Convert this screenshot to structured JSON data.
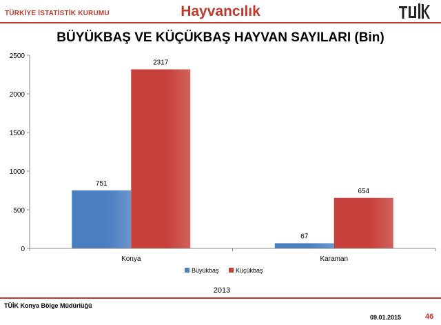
{
  "header": {
    "org_name": "TÜRKİYE İSTATİSTİK KURUMU",
    "section_title": "Hayvancılık",
    "logo_text": "TÜİK",
    "logo_icon": "tuik-logo"
  },
  "chart_data": {
    "type": "bar",
    "title": "BÜYÜKBAŞ VE KÜÇÜKBAŞ HAYVAN SAYILARI (Bin)",
    "xlabel": "2013",
    "ylabel": "",
    "ylim": [
      0,
      2500
    ],
    "yticks": [
      0,
      500,
      1000,
      1500,
      2000,
      2500
    ],
    "categories": [
      "Konya",
      "Karaman"
    ],
    "series": [
      {
        "name": "Büyükbaş",
        "values": [
          751,
          67
        ],
        "color": "#4a7fc1"
      },
      {
        "name": "Küçükbaş",
        "values": [
          2317,
          654
        ],
        "color": "#c8403c"
      }
    ],
    "legend_position": "bottom",
    "grid": false
  },
  "footer": {
    "left": "TÜİK Konya Bölge Müdürlüğü",
    "date": "09.01.2015",
    "page": "46"
  }
}
